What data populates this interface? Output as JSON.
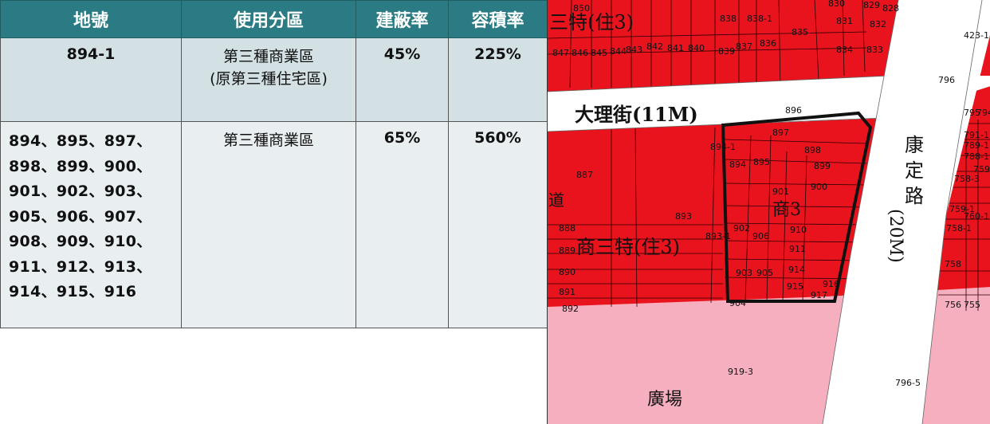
{
  "table": {
    "headers": [
      "地號",
      "使用分區",
      "建蔽率",
      "容積率"
    ],
    "rows": [
      {
        "lots": "894-1",
        "zone_line1": "第三種商業區",
        "zone_line2": "(原第三種住宅區)",
        "coverage": "45%",
        "far": "225%"
      },
      {
        "lots": "894、895、897、898、899、900、901、902、903、905、906、907、908、909、910、911、912、913、914、915、916",
        "lot_lines": [
          "894、895、897、",
          "898、899、900、",
          "901、902、903、",
          "905、906、907、",
          "908、909、910、",
          "911、912、913、",
          "914、915、916"
        ],
        "zone_line1": "第三種商業區",
        "coverage": "65%",
        "far": "560%"
      }
    ]
  },
  "map": {
    "colors": {
      "commercial_red": "#e8131c",
      "road_white": "#ffffff",
      "plaza_pink": "#f6afbf",
      "parcel_line": "#2a0000",
      "site_outline": "#111111"
    },
    "road_labels": {
      "dali_street": "大理街(11M)",
      "kangding_road_chars": [
        "康",
        "定",
        "路",
        "(20M)"
      ]
    },
    "zone_labels": {
      "top_left": "三特(住3)",
      "mid_left": "商三特(住3)",
      "site": "商3",
      "plaza": "廣場",
      "left_edge": "道"
    },
    "parcel_labels": [
      "847",
      "846",
      "845",
      "844",
      "843",
      "842",
      "841",
      "840",
      "839",
      "838",
      "837",
      "836",
      "835",
      "834",
      "833",
      "832",
      "831",
      "830",
      "829",
      "828",
      "850",
      "838-1",
      "796",
      "796-5",
      "795",
      "794",
      "791-1",
      "789-1",
      "788-1",
      "758-3",
      "759",
      "760-1",
      "759-1",
      "758-1",
      "758",
      "756",
      "755",
      "423-1",
      "896",
      "897",
      "898",
      "899",
      "900",
      "901",
      "902",
      "903",
      "905",
      "906",
      "910",
      "911",
      "914",
      "915",
      "916",
      "917",
      "894-1",
      "894",
      "895",
      "893",
      "893-1",
      "887",
      "888",
      "889",
      "890",
      "891",
      "892",
      "904",
      "919-3"
    ]
  }
}
